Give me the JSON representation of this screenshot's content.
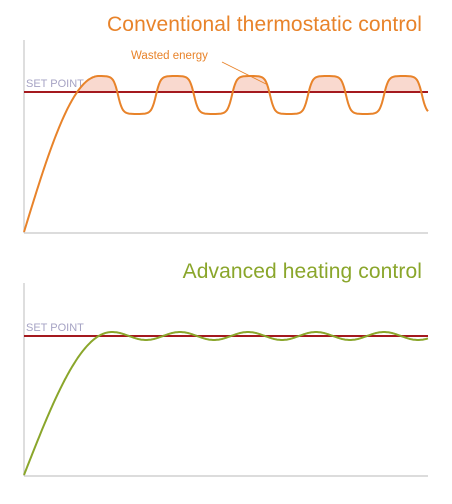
{
  "panels": {
    "conventional": {
      "title": "Conventional thermostatic control",
      "setpoint_label": "SET POINT",
      "annotation": "Wasted energy",
      "curve_color": "#e8832a",
      "fill_color": "#f9d9cf"
    },
    "advanced": {
      "title": "Advanced heating control",
      "setpoint_label": "SET POINT",
      "curve_color": "#8aa62b"
    }
  },
  "setpoint_color": "#a4191e",
  "axis_color": "#c8c8c8"
}
